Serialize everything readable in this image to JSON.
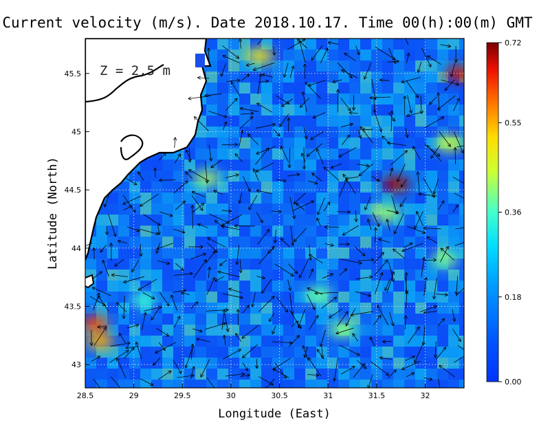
{
  "chart_data": {
    "type": "heatmap",
    "title": "Current velocity (m/s). Date 2018.10.17. Time 00(h):00(m) GMT",
    "xlabel": "Longitude (East)",
    "ylabel": "Latitude (North)",
    "annotation": "Z = 2.5 m",
    "xlim": [
      28.5,
      32.4
    ],
    "ylim": [
      42.8,
      45.8
    ],
    "x_ticks": [
      28.5,
      29,
      29.5,
      30,
      30.5,
      31,
      31.5,
      32
    ],
    "x_tick_labels": [
      "28.5",
      "29",
      "29.5",
      "30",
      "30.5",
      "31",
      "31.5",
      "32"
    ],
    "y_ticks": [
      43,
      43.5,
      44,
      44.5,
      45,
      45.5
    ],
    "y_tick_labels": [
      "43",
      "43.5",
      "44",
      "44.5",
      "45",
      "45.5"
    ],
    "grid": true,
    "colorbar": {
      "min": 0.0,
      "max": 0.72,
      "ticks": [
        0.0,
        0.18,
        0.36,
        0.55,
        0.72
      ],
      "tick_labels": [
        "0.00",
        "0.18",
        "0.36",
        "0.55",
        "0.72"
      ],
      "colormap": "jet"
    },
    "hotspots": [
      {
        "lon": 31.7,
        "lat": 44.55,
        "value": 0.7
      },
      {
        "lon": 32.35,
        "lat": 45.5,
        "value": 0.68
      },
      {
        "lon": 28.6,
        "lat": 43.35,
        "value": 0.62
      },
      {
        "lon": 28.65,
        "lat": 43.2,
        "value": 0.55
      },
      {
        "lon": 30.3,
        "lat": 45.65,
        "value": 0.5
      },
      {
        "lon": 31.6,
        "lat": 44.3,
        "value": 0.42
      },
      {
        "lon": 31.15,
        "lat": 43.3,
        "value": 0.4
      },
      {
        "lon": 30.9,
        "lat": 43.6,
        "value": 0.38
      },
      {
        "lon": 29.1,
        "lat": 43.55,
        "value": 0.35
      },
      {
        "lon": 32.25,
        "lat": 44.9,
        "value": 0.45
      },
      {
        "lon": 29.75,
        "lat": 44.6,
        "value": 0.42
      },
      {
        "lon": 32.2,
        "lat": 43.9,
        "value": 0.4
      }
    ]
  }
}
